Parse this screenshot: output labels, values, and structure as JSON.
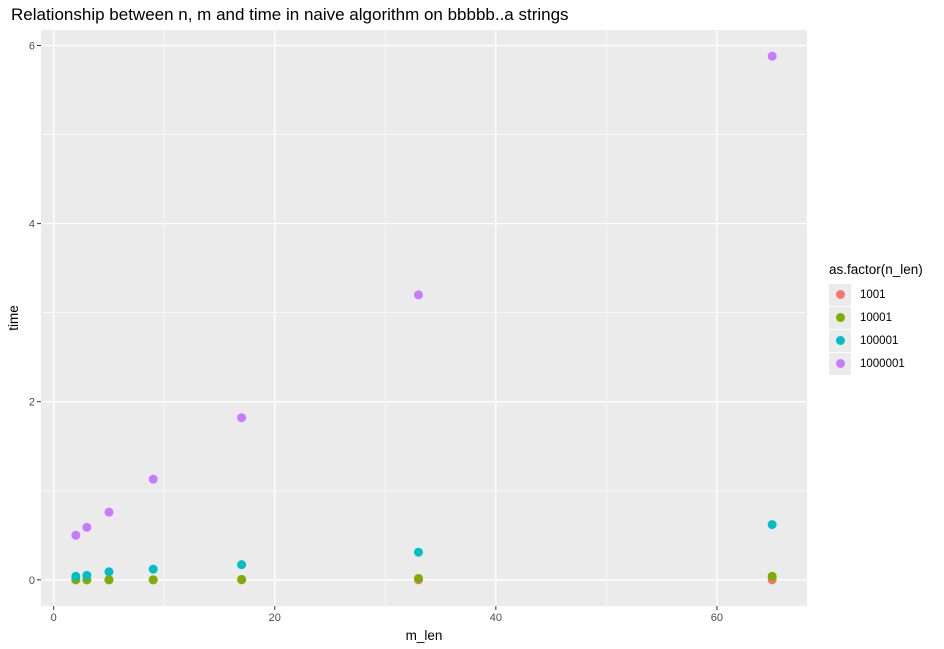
{
  "chart_data": {
    "type": "scatter",
    "title": "Relationship between n, m and time in naive algorithm on bbbbb..a strings",
    "xlabel": "m_len",
    "ylabel": "time",
    "xlim": [
      -1.15,
      68.15
    ],
    "ylim": [
      -0.294,
      6.174
    ],
    "x_ticks": [
      0,
      20,
      40,
      60
    ],
    "y_ticks": [
      0,
      2,
      4,
      6
    ],
    "x_minor": [
      10,
      30,
      50
    ],
    "y_minor": [
      1,
      3,
      5
    ],
    "grid": true,
    "legend": {
      "title": "as.factor(n_len)",
      "position": "right"
    },
    "series": [
      {
        "name": "1001",
        "color": "#F8766D",
        "points": [
          [
            2,
            0.0
          ],
          [
            3,
            0.0
          ],
          [
            5,
            0.0
          ],
          [
            9,
            0.0
          ],
          [
            17,
            0.0
          ],
          [
            33,
            0.0
          ],
          [
            65,
            0.0
          ]
        ]
      },
      {
        "name": "10001",
        "color": "#7CAE00",
        "points": [
          [
            2,
            0.0
          ],
          [
            3,
            0.0
          ],
          [
            5,
            0.0
          ],
          [
            9,
            0.0
          ],
          [
            17,
            0.005
          ],
          [
            33,
            0.015
          ],
          [
            65,
            0.04
          ]
        ]
      },
      {
        "name": "100001",
        "color": "#00BFC4",
        "points": [
          [
            2,
            0.04
          ],
          [
            3,
            0.05
          ],
          [
            5,
            0.09
          ],
          [
            9,
            0.12
          ],
          [
            17,
            0.17
          ],
          [
            33,
            0.31
          ],
          [
            65,
            0.62
          ]
        ]
      },
      {
        "name": "1000001",
        "color": "#C77CFF",
        "points": [
          [
            2,
            0.5
          ],
          [
            3,
            0.59
          ],
          [
            5,
            0.76
          ],
          [
            9,
            1.13
          ],
          [
            17,
            1.82
          ],
          [
            33,
            3.2
          ],
          [
            65,
            5.88
          ]
        ]
      }
    ]
  }
}
